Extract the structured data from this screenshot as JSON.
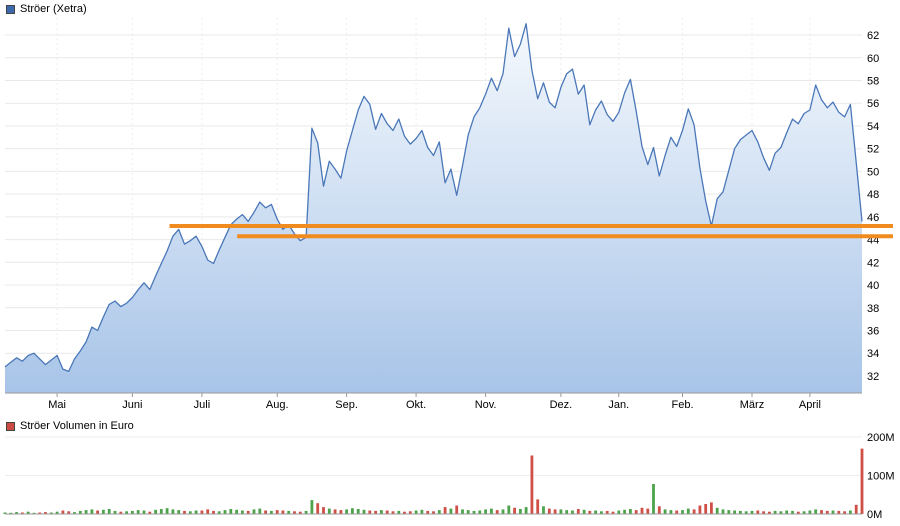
{
  "chart_data": [
    {
      "type": "area",
      "title": "Ströer (Xetra)",
      "legend_swatch_color": "#3c68ac",
      "line_color": "#4a77b8",
      "area_top_color": "#f5f9fd",
      "area_bottom_color": "#a8c4e8",
      "grid": true,
      "ylim": [
        30.5,
        63.5
      ],
      "y_ticks": [
        62,
        60,
        58,
        56,
        54,
        52,
        50,
        48,
        46,
        44,
        42,
        40,
        38,
        36,
        34,
        32
      ],
      "x_tick_labels": [
        "Mai",
        "Juni",
        "Juli",
        "Aug.",
        "Sep.",
        "Okt.",
        "Nov.",
        "Dez.",
        "Jan.",
        "Feb.",
        "März",
        "April"
      ],
      "x_tick_indices": [
        9,
        22,
        34,
        47,
        59,
        71,
        83,
        96,
        106,
        117,
        129,
        139
      ],
      "series": [
        {
          "name": "Ströer (Xetra)",
          "values": [
            32.8,
            33.2,
            33.6,
            33.3,
            33.8,
            34.0,
            33.5,
            33.0,
            33.4,
            33.8,
            32.6,
            32.4,
            33.5,
            34.2,
            35.0,
            36.3,
            36.0,
            37.2,
            38.3,
            38.6,
            38.1,
            38.4,
            38.9,
            39.6,
            40.2,
            39.6,
            40.8,
            41.9,
            43.0,
            44.3,
            44.9,
            43.6,
            43.9,
            44.3,
            43.4,
            42.2,
            41.9,
            43.1,
            44.2,
            45.3,
            45.8,
            46.2,
            45.6,
            46.4,
            47.3,
            46.8,
            47.1,
            45.8,
            44.9,
            45.3,
            44.5,
            43.9,
            44.2,
            53.8,
            52.5,
            48.7,
            50.9,
            50.2,
            49.4,
            51.8,
            53.6,
            55.4,
            56.6,
            55.9,
            53.7,
            55.1,
            54.2,
            53.6,
            54.6,
            53.1,
            52.4,
            52.9,
            53.6,
            52.1,
            51.4,
            52.6,
            49.0,
            50.2,
            47.9,
            50.5,
            53.2,
            54.8,
            55.6,
            56.8,
            58.2,
            57.1,
            58.6,
            62.6,
            60.1,
            61.2,
            63.0,
            58.9,
            56.4,
            57.8,
            56.1,
            55.6,
            57.4,
            58.6,
            59.0,
            56.8,
            57.6,
            54.1,
            55.4,
            56.2,
            55.0,
            54.4,
            55.2,
            56.9,
            58.1,
            55.3,
            52.2,
            50.6,
            52.1,
            49.6,
            51.4,
            53.0,
            52.2,
            53.6,
            55.5,
            54.1,
            50.3,
            47.4,
            45.2,
            47.6,
            48.2,
            50.1,
            52.0,
            52.8,
            53.2,
            53.6,
            52.6,
            51.2,
            50.1,
            51.6,
            52.1,
            53.4,
            54.6,
            54.2,
            55.1,
            55.4,
            57.6,
            56.3,
            55.6,
            56.1,
            55.2,
            54.8,
            55.9,
            50.8,
            45.6
          ]
        }
      ],
      "hlines": [
        {
          "y": 45.2,
          "x_start_frac": 0.192,
          "color": "#ef8b1f"
        },
        {
          "y": 44.3,
          "x_start_frac": 0.271,
          "color": "#ef8b1f"
        }
      ]
    },
    {
      "type": "bar",
      "title": "Ströer Volumen in Euro",
      "legend_swatch_color": "#cc4b40",
      "up_color": "#4ca34c",
      "down_color": "#d05047",
      "ylim": [
        0,
        200
      ],
      "y_ticks": [
        {
          "value": 200,
          "label": "200M"
        },
        {
          "value": 100,
          "label": "100M"
        },
        {
          "value": 0,
          "label": "0M"
        }
      ],
      "values": [
        4,
        3,
        5,
        4,
        6,
        3,
        4,
        5,
        4,
        6,
        9,
        7,
        5,
        8,
        10,
        12,
        9,
        11,
        13,
        8,
        6,
        7,
        8,
        10,
        9,
        6,
        11,
        13,
        15,
        12,
        10,
        8,
        7,
        9,
        9,
        12,
        8,
        7,
        10,
        13,
        11,
        9,
        8,
        12,
        14,
        9,
        8,
        10,
        9,
        8,
        7,
        6,
        8,
        36,
        28,
        18,
        14,
        12,
        10,
        12,
        15,
        13,
        11,
        9,
        8,
        10,
        9,
        7,
        8,
        6,
        7,
        9,
        11,
        8,
        7,
        10,
        18,
        14,
        22,
        12,
        10,
        8,
        9,
        12,
        14,
        10,
        12,
        22,
        16,
        13,
        18,
        152,
        38,
        20,
        14,
        12,
        12,
        10,
        9,
        13,
        11,
        8,
        9,
        7,
        8,
        6,
        9,
        11,
        13,
        10,
        16,
        14,
        78,
        20,
        12,
        10,
        9,
        10,
        14,
        12,
        22,
        26,
        30,
        16,
        12,
        10,
        9,
        8,
        7,
        8,
        9,
        7,
        6,
        8,
        7,
        9,
        8,
        6,
        7,
        9,
        12,
        10,
        8,
        9,
        8,
        7,
        9,
        24,
        170
      ]
    }
  ]
}
